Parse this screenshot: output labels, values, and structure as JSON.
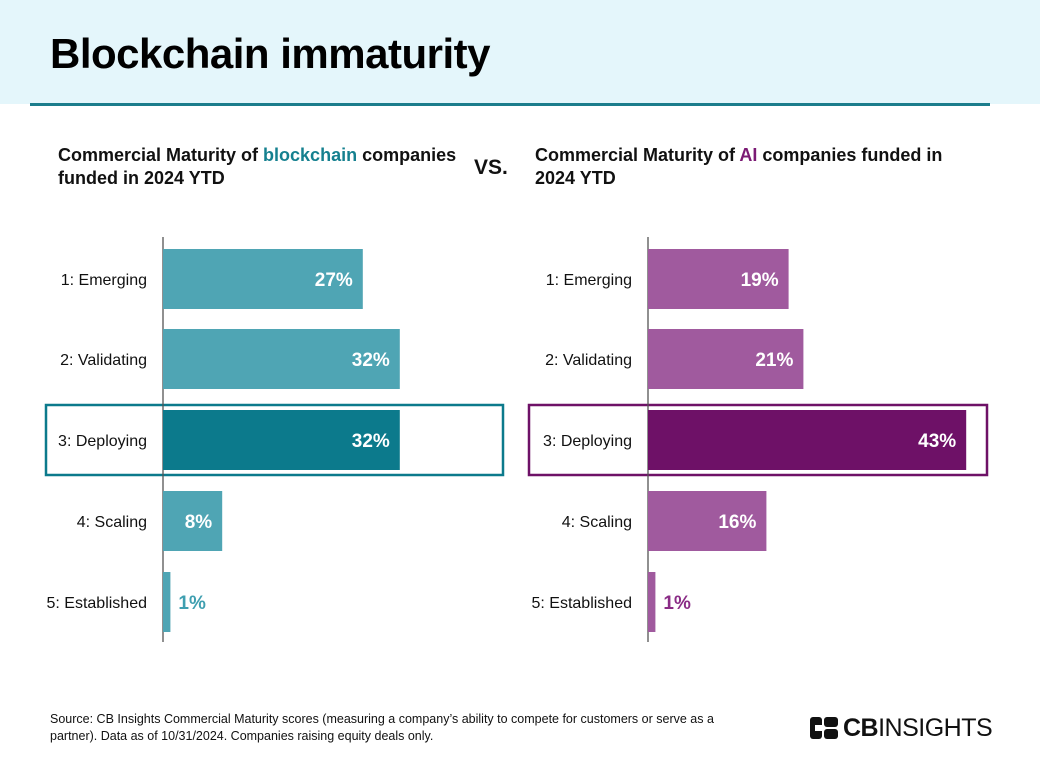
{
  "header": {
    "title": "Blockchain immaturity"
  },
  "subtitles": {
    "left": {
      "prefix": "Commercial Maturity of ",
      "highlight": "blockchain",
      "suffix": " companies funded in 2024 YTD"
    },
    "vs": "VS.",
    "right": {
      "prefix": "Commercial Maturity of ",
      "highlight": "AI",
      "suffix": " companies funded in 2024 YTD"
    }
  },
  "chart_data": [
    {
      "type": "bar",
      "orientation": "horizontal",
      "subject": "blockchain",
      "categories": [
        "1: Emerging",
        "2: Validating",
        "3: Deploying",
        "4: Scaling",
        "5: Established"
      ],
      "values": [
        27,
        32,
        32,
        8,
        1
      ],
      "labels": [
        "27%",
        "32%",
        "32%",
        "8%",
        "1%"
      ],
      "highlight_index": 2,
      "colors": {
        "bar": "#4fa5b4",
        "highlight": "#0c7a8c",
        "outside_label": "#3f9fb0"
      }
    },
    {
      "type": "bar",
      "orientation": "horizontal",
      "subject": "AI",
      "categories": [
        "1: Emerging",
        "2: Validating",
        "3: Deploying",
        "4: Scaling",
        "5: Established"
      ],
      "values": [
        19,
        21,
        43,
        16,
        1
      ],
      "labels": [
        "19%",
        "21%",
        "43%",
        "16%",
        "1%"
      ],
      "highlight_index": 2,
      "colors": {
        "bar": "#a05a9e",
        "highlight": "#6e1167",
        "outside_label": "#8a2c86"
      }
    }
  ],
  "footnote": "Source: CB Insights Commercial Maturity scores (measuring a company’s ability to compete for customers or serve as a partner). Data as of 10/31/2024. Companies raising equity deals only.",
  "logo": {
    "bold": "CB",
    "light": "INSIGHTS"
  }
}
